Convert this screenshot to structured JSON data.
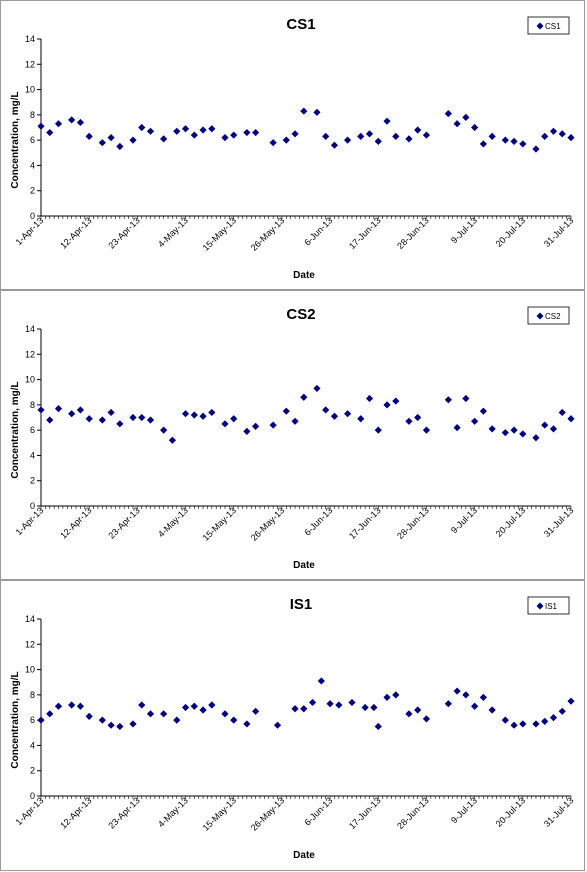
{
  "chart_data": [
    {
      "type": "scatter",
      "title": "CS1",
      "xlabel": "Date",
      "ylabel": "Concentration, mg/L",
      "ylim": [
        0,
        14
      ],
      "yticks": [
        0,
        2,
        4,
        6,
        8,
        10,
        12,
        14
      ],
      "xlim": [
        "2013-04-01",
        "2013-07-31"
      ],
      "xticks": [
        "1-Apr-13",
        "12-Apr-13",
        "23-Apr-13",
        "4-May-13",
        "15-May-13",
        "26-May-13",
        "6-Jun-13",
        "17-Jun-13",
        "28-Jun-13",
        "9-Jul-13",
        "20-Jul-13",
        "31-Jul-13"
      ],
      "legend": "top-right",
      "grid": false,
      "marker_color": "#000080",
      "series": [
        {
          "name": "CS1",
          "points": [
            [
              "2013-04-01",
              7.1
            ],
            [
              "2013-04-03",
              6.6
            ],
            [
              "2013-04-05",
              7.3
            ],
            [
              "2013-04-08",
              7.6
            ],
            [
              "2013-04-10",
              7.4
            ],
            [
              "2013-04-12",
              6.3
            ],
            [
              "2013-04-15",
              5.8
            ],
            [
              "2013-04-17",
              6.2
            ],
            [
              "2013-04-19",
              5.5
            ],
            [
              "2013-04-22",
              6.0
            ],
            [
              "2013-04-24",
              7.0
            ],
            [
              "2013-04-26",
              6.7
            ],
            [
              "2013-04-29",
              6.1
            ],
            [
              "2013-05-02",
              6.7
            ],
            [
              "2013-05-04",
              6.9
            ],
            [
              "2013-05-06",
              6.4
            ],
            [
              "2013-05-08",
              6.8
            ],
            [
              "2013-05-10",
              6.9
            ],
            [
              "2013-05-13",
              6.2
            ],
            [
              "2013-05-15",
              6.4
            ],
            [
              "2013-05-18",
              6.6
            ],
            [
              "2013-05-20",
              6.6
            ],
            [
              "2013-05-24",
              5.8
            ],
            [
              "2013-05-27",
              6.0
            ],
            [
              "2013-05-29",
              6.5
            ],
            [
              "2013-05-31",
              8.3
            ],
            [
              "2013-06-03",
              8.2
            ],
            [
              "2013-06-05",
              6.3
            ],
            [
              "2013-06-07",
              5.6
            ],
            [
              "2013-06-10",
              6.0
            ],
            [
              "2013-06-13",
              6.3
            ],
            [
              "2013-06-15",
              6.5
            ],
            [
              "2013-06-17",
              5.9
            ],
            [
              "2013-06-19",
              7.5
            ],
            [
              "2013-06-21",
              6.3
            ],
            [
              "2013-06-24",
              6.1
            ],
            [
              "2013-06-26",
              6.8
            ],
            [
              "2013-06-28",
              6.4
            ],
            [
              "2013-07-03",
              8.1
            ],
            [
              "2013-07-05",
              7.3
            ],
            [
              "2013-07-07",
              7.8
            ],
            [
              "2013-07-09",
              7.0
            ],
            [
              "2013-07-11",
              5.7
            ],
            [
              "2013-07-13",
              6.3
            ],
            [
              "2013-07-16",
              6.0
            ],
            [
              "2013-07-18",
              5.9
            ],
            [
              "2013-07-20",
              5.7
            ],
            [
              "2013-07-23",
              5.3
            ],
            [
              "2013-07-25",
              6.3
            ],
            [
              "2013-07-27",
              6.7
            ],
            [
              "2013-07-29",
              6.5
            ],
            [
              "2013-07-31",
              6.2
            ]
          ]
        }
      ]
    },
    {
      "type": "scatter",
      "title": "CS2",
      "xlabel": "Date",
      "ylabel": "Concentration, mg/L",
      "ylim": [
        0,
        14
      ],
      "yticks": [
        0,
        2,
        4,
        6,
        8,
        10,
        12,
        14
      ],
      "xlim": [
        "2013-04-01",
        "2013-07-31"
      ],
      "xticks": [
        "1-Apr-13",
        "12-Apr-13",
        "23-Apr-13",
        "4-May-13",
        "15-May-13",
        "26-May-13",
        "6-Jun-13",
        "17-Jun-13",
        "28-Jun-13",
        "9-Jul-13",
        "20-Jul-13",
        "31-Jul-13"
      ],
      "legend": "top-right",
      "grid": false,
      "marker_color": "#000080",
      "series": [
        {
          "name": "CS2",
          "points": [
            [
              "2013-04-01",
              7.6
            ],
            [
              "2013-04-03",
              6.8
            ],
            [
              "2013-04-05",
              7.7
            ],
            [
              "2013-04-08",
              7.3
            ],
            [
              "2013-04-10",
              7.6
            ],
            [
              "2013-04-12",
              6.9
            ],
            [
              "2013-04-15",
              6.8
            ],
            [
              "2013-04-17",
              7.4
            ],
            [
              "2013-04-19",
              6.5
            ],
            [
              "2013-04-22",
              7.0
            ],
            [
              "2013-04-24",
              7.0
            ],
            [
              "2013-04-26",
              6.8
            ],
            [
              "2013-04-29",
              6.0
            ],
            [
              "2013-05-01",
              5.2
            ],
            [
              "2013-05-04",
              7.3
            ],
            [
              "2013-05-06",
              7.2
            ],
            [
              "2013-05-08",
              7.1
            ],
            [
              "2013-05-10",
              7.4
            ],
            [
              "2013-05-13",
              6.5
            ],
            [
              "2013-05-15",
              6.9
            ],
            [
              "2013-05-18",
              5.9
            ],
            [
              "2013-05-20",
              6.3
            ],
            [
              "2013-05-24",
              6.4
            ],
            [
              "2013-05-27",
              7.5
            ],
            [
              "2013-05-29",
              6.7
            ],
            [
              "2013-05-31",
              8.6
            ],
            [
              "2013-06-03",
              9.3
            ],
            [
              "2013-06-05",
              7.6
            ],
            [
              "2013-06-07",
              7.1
            ],
            [
              "2013-06-10",
              7.3
            ],
            [
              "2013-06-13",
              6.9
            ],
            [
              "2013-06-15",
              8.5
            ],
            [
              "2013-06-17",
              6.0
            ],
            [
              "2013-06-19",
              8.0
            ],
            [
              "2013-06-21",
              8.3
            ],
            [
              "2013-06-24",
              6.7
            ],
            [
              "2013-06-26",
              7.0
            ],
            [
              "2013-06-28",
              6.0
            ],
            [
              "2013-07-03",
              8.4
            ],
            [
              "2013-07-05",
              6.2
            ],
            [
              "2013-07-07",
              8.5
            ],
            [
              "2013-07-09",
              6.7
            ],
            [
              "2013-07-11",
              7.5
            ],
            [
              "2013-07-13",
              6.1
            ],
            [
              "2013-07-16",
              5.8
            ],
            [
              "2013-07-18",
              6.0
            ],
            [
              "2013-07-20",
              5.7
            ],
            [
              "2013-07-23",
              5.4
            ],
            [
              "2013-07-25",
              6.4
            ],
            [
              "2013-07-27",
              6.1
            ],
            [
              "2013-07-29",
              7.4
            ],
            [
              "2013-07-31",
              6.9
            ]
          ]
        }
      ]
    },
    {
      "type": "scatter",
      "title": "IS1",
      "xlabel": "Date",
      "ylabel": "Concentration, mg/L",
      "ylim": [
        0,
        14
      ],
      "yticks": [
        0,
        2,
        4,
        6,
        8,
        10,
        12,
        14
      ],
      "xlim": [
        "2013-04-01",
        "2013-07-31"
      ],
      "xticks": [
        "1-Apr-13",
        "12-Apr-13",
        "23-Apr-13",
        "4-May-13",
        "15-May-13",
        "26-May-13",
        "6-Jun-13",
        "17-Jun-13",
        "28-Jun-13",
        "9-Jul-13",
        "20-Jul-13",
        "31-Jul-13"
      ],
      "legend": "top-right",
      "grid": false,
      "marker_color": "#000080",
      "series": [
        {
          "name": "IS1",
          "points": [
            [
              "2013-04-01",
              6.0
            ],
            [
              "2013-04-03",
              6.5
            ],
            [
              "2013-04-05",
              7.1
            ],
            [
              "2013-04-08",
              7.2
            ],
            [
              "2013-04-10",
              7.1
            ],
            [
              "2013-04-12",
              6.3
            ],
            [
              "2013-04-15",
              6.0
            ],
            [
              "2013-04-17",
              5.6
            ],
            [
              "2013-04-19",
              5.5
            ],
            [
              "2013-04-22",
              5.7
            ],
            [
              "2013-04-24",
              7.2
            ],
            [
              "2013-04-26",
              6.5
            ],
            [
              "2013-04-29",
              6.5
            ],
            [
              "2013-05-02",
              6.0
            ],
            [
              "2013-05-04",
              7.0
            ],
            [
              "2013-05-06",
              7.1
            ],
            [
              "2013-05-08",
              6.8
            ],
            [
              "2013-05-10",
              7.2
            ],
            [
              "2013-05-13",
              6.5
            ],
            [
              "2013-05-15",
              6.0
            ],
            [
              "2013-05-18",
              5.7
            ],
            [
              "2013-05-20",
              6.7
            ],
            [
              "2013-05-25",
              5.6
            ],
            [
              "2013-05-29",
              6.9
            ],
            [
              "2013-05-31",
              6.9
            ],
            [
              "2013-06-02",
              7.4
            ],
            [
              "2013-06-04",
              9.1
            ],
            [
              "2013-06-06",
              7.3
            ],
            [
              "2013-06-08",
              7.2
            ],
            [
              "2013-06-11",
              7.4
            ],
            [
              "2013-06-14",
              7.0
            ],
            [
              "2013-06-16",
              7.0
            ],
            [
              "2013-06-17",
              5.5
            ],
            [
              "2013-06-19",
              7.8
            ],
            [
              "2013-06-21",
              8.0
            ],
            [
              "2013-06-24",
              6.5
            ],
            [
              "2013-06-26",
              6.8
            ],
            [
              "2013-06-28",
              6.1
            ],
            [
              "2013-07-03",
              7.3
            ],
            [
              "2013-07-05",
              8.3
            ],
            [
              "2013-07-07",
              8.0
            ],
            [
              "2013-07-09",
              7.1
            ],
            [
              "2013-07-11",
              7.8
            ],
            [
              "2013-07-13",
              6.8
            ],
            [
              "2013-07-16",
              6.0
            ],
            [
              "2013-07-18",
              5.6
            ],
            [
              "2013-07-20",
              5.7
            ],
            [
              "2013-07-23",
              5.7
            ],
            [
              "2013-07-25",
              5.9
            ],
            [
              "2013-07-27",
              6.2
            ],
            [
              "2013-07-29",
              6.7
            ],
            [
              "2013-07-31",
              7.5
            ]
          ]
        }
      ]
    }
  ]
}
